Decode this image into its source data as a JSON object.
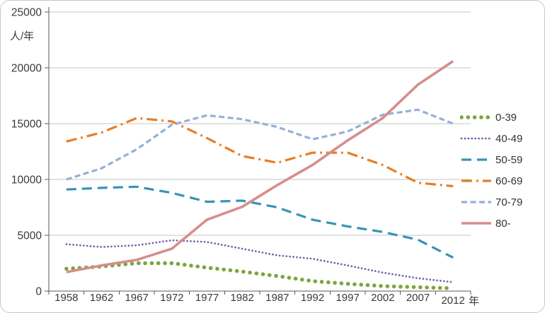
{
  "chart_data": {
    "type": "line",
    "title": "",
    "ylabel": "人/年",
    "x_unit": "年",
    "categories": [
      "1958",
      "1962",
      "1967",
      "1972",
      "1977",
      "1982",
      "1987",
      "1992",
      "1997",
      "2002",
      "2007",
      "2012"
    ],
    "yticks": [
      0,
      5000,
      10000,
      15000,
      20000,
      25000
    ],
    "ylim": [
      0,
      25000
    ],
    "grid": true,
    "legend_position": "right",
    "axis_color": "#595959",
    "grid_color": "#c6c6c6",
    "label_color": "#3a3a3a",
    "series": [
      {
        "name": "0-39",
        "color": "#7ea43c",
        "style": "round-dot",
        "values": [
          2000,
          2200,
          2500,
          2500,
          2100,
          1750,
          1350,
          900,
          650,
          450,
          350,
          250
        ]
      },
      {
        "name": "40-49",
        "color": "#7061a8",
        "style": "dot",
        "values": [
          4200,
          3950,
          4100,
          4550,
          4400,
          3800,
          3200,
          2900,
          2300,
          1650,
          1150,
          800
        ]
      },
      {
        "name": "50-59",
        "color": "#3793b3",
        "style": "long-dash",
        "values": [
          9100,
          9250,
          9350,
          8800,
          8000,
          8100,
          7500,
          6400,
          5800,
          5300,
          4600,
          3000
        ]
      },
      {
        "name": "60-69",
        "color": "#e67e26",
        "style": "dash-dot",
        "values": [
          13400,
          14200,
          15500,
          15200,
          13700,
          12100,
          11500,
          12400,
          12400,
          11300,
          9700,
          9400
        ]
      },
      {
        "name": "70-79",
        "color": "#95b0d6",
        "style": "short-dash",
        "values": [
          10000,
          11000,
          12700,
          14900,
          15750,
          15400,
          14700,
          13600,
          14300,
          15800,
          16250,
          15000
        ]
      },
      {
        "name": "80-",
        "color": "#d78d8d",
        "style": "solid",
        "values": [
          1700,
          2300,
          2800,
          3800,
          6400,
          7550,
          9500,
          11300,
          13500,
          15500,
          18500,
          20600
        ]
      }
    ]
  }
}
